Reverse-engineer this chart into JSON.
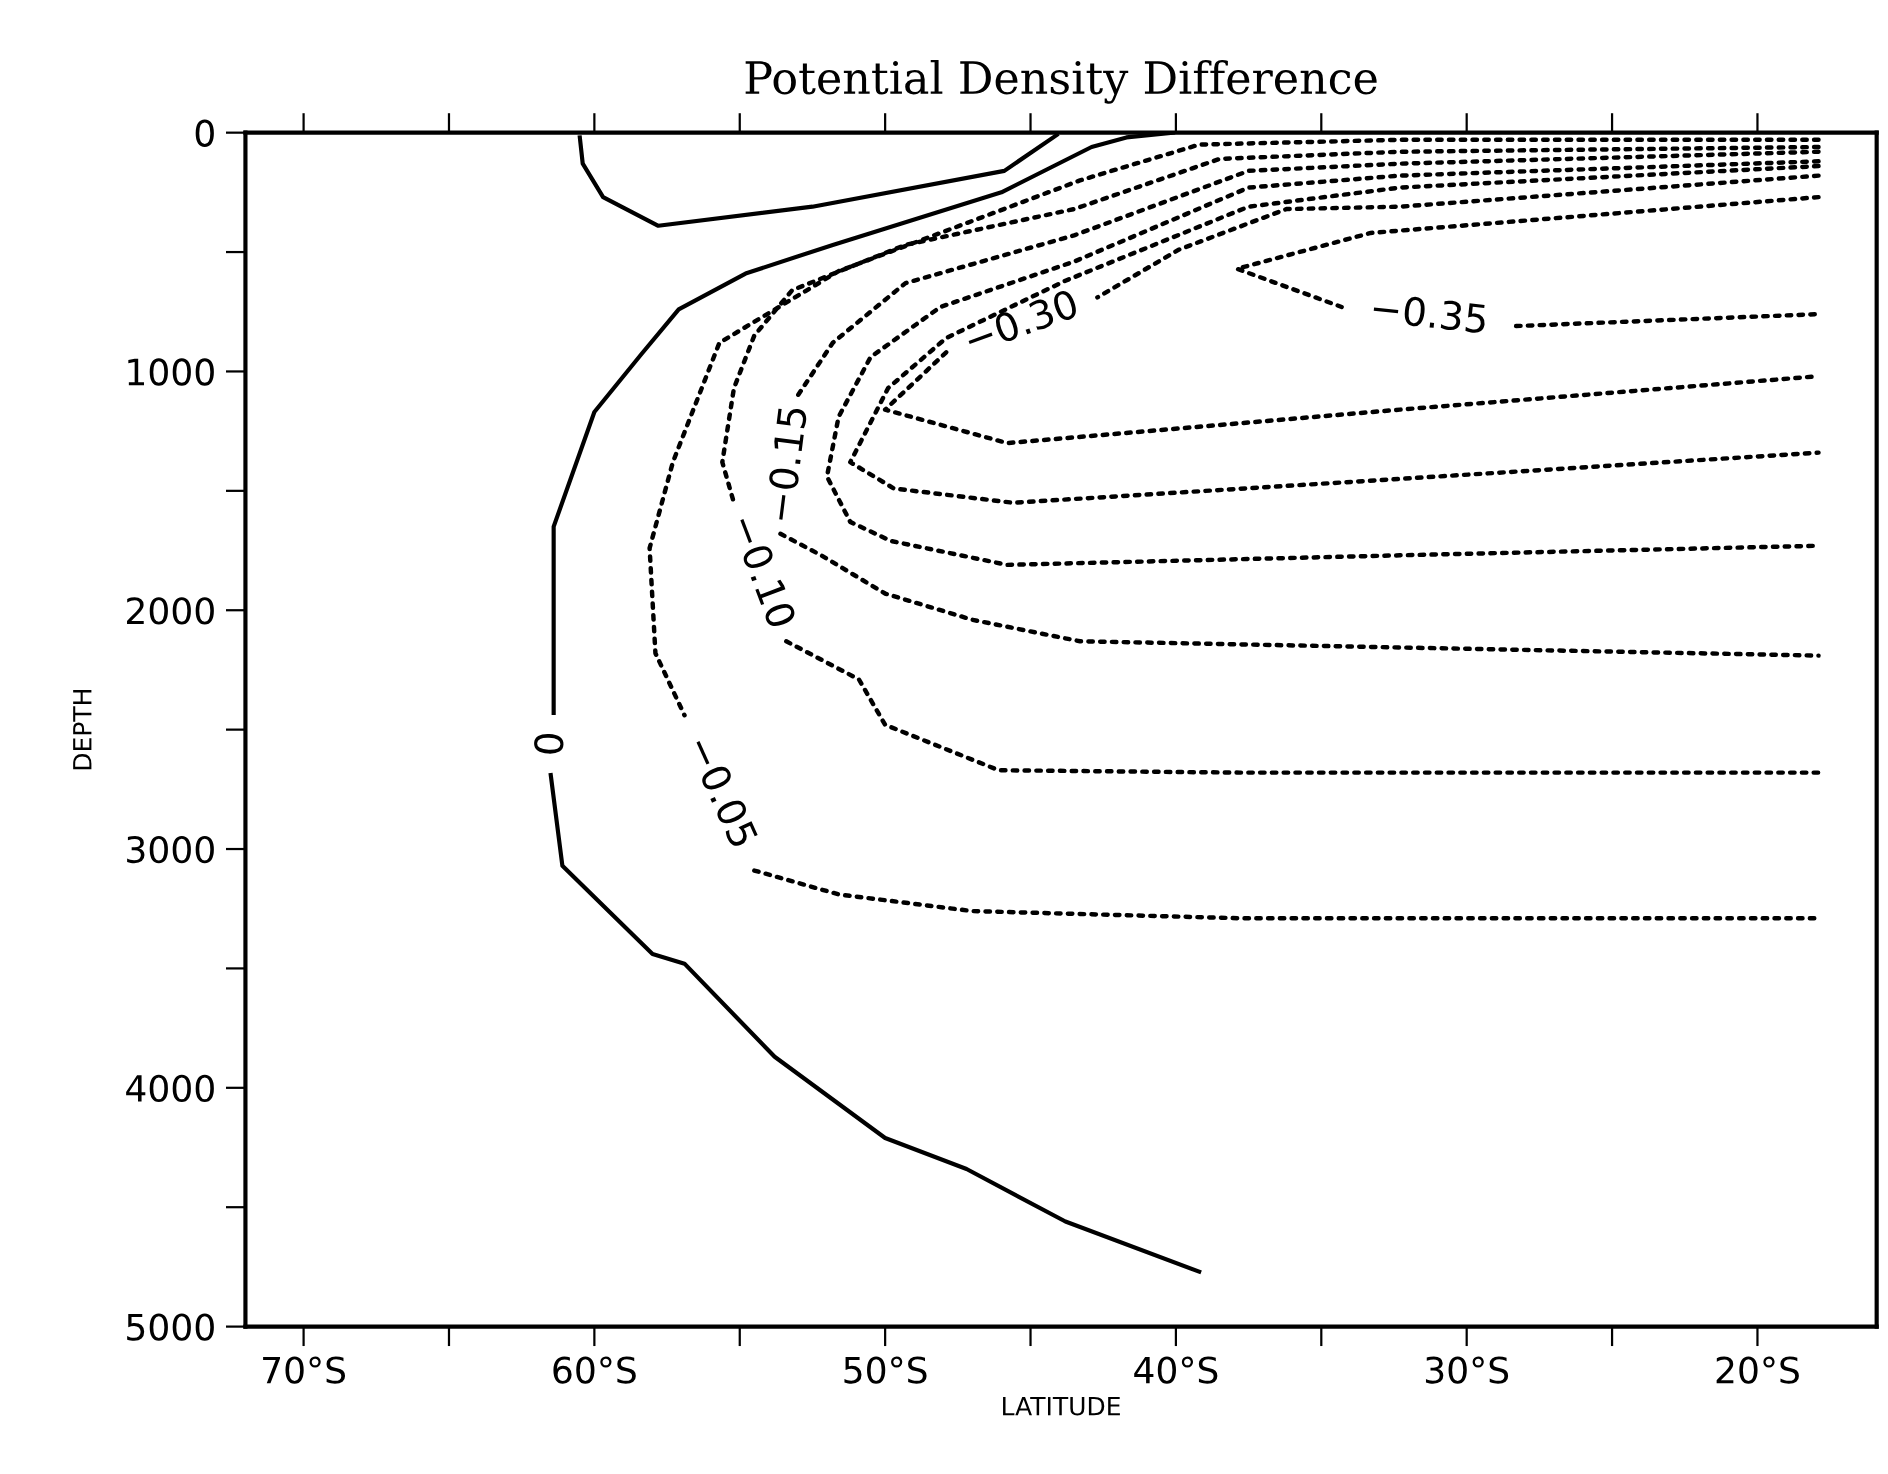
{
  "chart_data": {
    "type": "line",
    "title": "Potential Density Difference",
    "xlabel": "LATITUDE",
    "ylabel": "DEPTH",
    "xlim": [
      -72,
      -15.9
    ],
    "ylim": [
      5000,
      0
    ],
    "xticks": [
      {
        "value": -70,
        "label": "70°S"
      },
      {
        "value": -65,
        "label": null
      },
      {
        "value": -60,
        "label": "60°S"
      },
      {
        "value": -55,
        "label": null
      },
      {
        "value": -50,
        "label": "50°S"
      },
      {
        "value": -45,
        "label": null
      },
      {
        "value": -40,
        "label": "40°S"
      },
      {
        "value": -35,
        "label": null
      },
      {
        "value": -30,
        "label": "30°S"
      },
      {
        "value": -25,
        "label": null
      },
      {
        "value": -20,
        "label": "20°S"
      }
    ],
    "yticks": [
      0,
      {
        "value": 500,
        "label": null
      },
      1000,
      {
        "value": 1500,
        "label": null
      },
      2000,
      {
        "value": 2500,
        "label": null
      },
      3000,
      {
        "value": 3500,
        "label": null
      },
      4000,
      {
        "value": 4500,
        "label": null
      },
      5000
    ],
    "grid": false,
    "legend": false,
    "marker": "none",
    "series": [
      {
        "name": "0",
        "color": "#000000",
        "line_style": "solid",
        "x": [
          -40.1,
          -41.7,
          -42.9,
          -46.0,
          -51.8,
          -54.8,
          -57.1,
          -58.4,
          -60.0,
          -61.4,
          -61.4,
          null,
          -61.5,
          -61.1,
          -58.0,
          -56.9,
          -53.8,
          -50.0,
          -47.2,
          -43.8,
          -39.2
        ],
        "values": [
          0,
          20,
          60,
          250,
          470,
          590,
          740,
          930,
          1170,
          1650,
          2430,
          null,
          2690,
          3070,
          3440,
          3480,
          3870,
          4210,
          4340,
          4560,
          4770
        ]
      },
      {
        "color": "#000000",
        "line_style": "solid",
        "x": [
          -60.5,
          -60.4,
          -59.7,
          -57.8,
          -52.5,
          -45.9,
          -44.1
        ],
        "values": [
          20,
          130,
          270,
          390,
          310,
          160,
          10
        ]
      },
      {
        "name": "−0.05",
        "color": "#000000",
        "line_style": "dotted",
        "x": [
          -17.9,
          -32.3,
          -39.2,
          -43.3,
          -48.1,
          -51.6,
          -55.7,
          -57.3,
          -58.1,
          -57.9,
          -56.9,
          null,
          -54.5,
          -51.6,
          -47.0,
          -37.8,
          -17.9
        ],
        "values": [
          30,
          30,
          50,
          200,
          420,
          580,
          880,
          1380,
          1740,
          2180,
          2440,
          null,
          3090,
          3190,
          3260,
          3290,
          3290
        ]
      },
      {
        "name": "−0.10",
        "color": "#000000",
        "line_style": "dotted",
        "x": [
          -17.9,
          -32.3,
          -38.5,
          -43.5,
          -49.3,
          -53.2,
          -54.5,
          -55.2,
          -55.6,
          -55.2,
          null,
          -53.4,
          -50.9,
          -50.0,
          -46.1,
          -37.8,
          -17.9
        ],
        "values": [
          60,
          80,
          110,
          320,
          470,
          660,
          850,
          1070,
          1380,
          1550,
          null,
          2130,
          2290,
          2480,
          2670,
          2680,
          2680
        ]
      },
      {
        "name": "−0.15",
        "color": "#000000",
        "line_style": "dotted",
        "x": [
          -17.9,
          -32.3,
          -37.5,
          -43.5,
          -49.3,
          -51.8,
          -53.0,
          null,
          -53.6,
          -52.2,
          -50.0,
          -47.0,
          -43.3,
          -17.9
        ],
        "values": [
          80,
          130,
          160,
          430,
          630,
          880,
          1100,
          null,
          1680,
          1770,
          1930,
          2040,
          2130,
          2190
        ]
      },
      {
        "color": "#000000",
        "line_style": "dotted",
        "x": [
          -17.9,
          -32.3,
          -37.5,
          -43.5,
          -48.1,
          -50.5,
          -51.6,
          -52.0,
          -51.2,
          -49.8,
          -45.8,
          -32.3,
          -17.9
        ],
        "values": [
          120,
          180,
          230,
          540,
          730,
          940,
          1190,
          1440,
          1630,
          1710,
          1810,
          1770,
          1730
        ]
      },
      {
        "color": "#000000",
        "line_style": "dotted",
        "x": [
          -17.9,
          -32.3,
          -37.5,
          -43.8,
          -47.9,
          -49.9,
          -51.2,
          -49.7,
          -45.6,
          -32.3,
          -17.9
        ],
        "values": [
          140,
          230,
          310,
          620,
          860,
          1070,
          1380,
          1490,
          1550,
          1450,
          1340
        ]
      },
      {
        "name": "−0.30",
        "color": "#000000",
        "line_style": "dotted",
        "x": [
          -17.9,
          -32.3,
          -36.2,
          -39.9,
          -42.7,
          null,
          -47.9,
          -50.0,
          -45.8,
          -32.3,
          -17.9
        ],
        "values": [
          180,
          310,
          320,
          490,
          690,
          null,
          920,
          1160,
          1300,
          1160,
          1020
        ]
      },
      {
        "name": "−0.35",
        "color": "#000000",
        "line_style": "dotted",
        "x": [
          -17.9,
          -33.3,
          -37.9,
          -34.3,
          null,
          -28.3,
          -17.9
        ],
        "values": [
          270,
          420,
          570,
          730,
          null,
          810,
          760
        ]
      }
    ]
  }
}
